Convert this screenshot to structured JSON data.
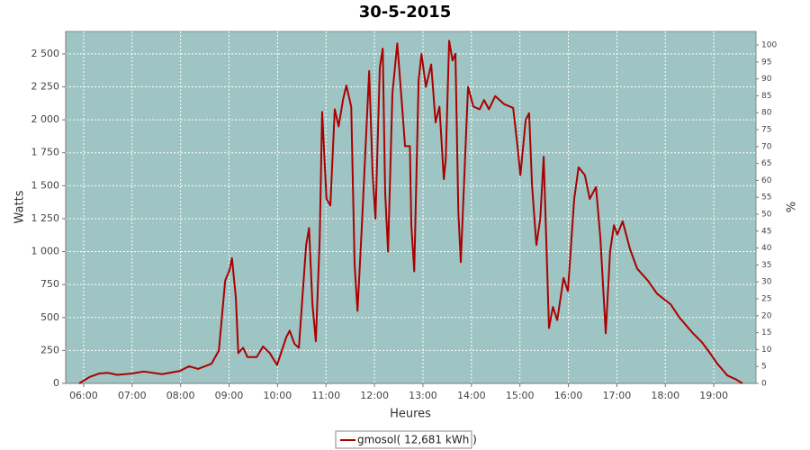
{
  "chart_data": {
    "type": "line",
    "title": "30-5-2015",
    "x_label": "Heures",
    "y_label": "Watts",
    "y2_label": "%",
    "x": [
      5.91,
      6.13,
      6.32,
      6.5,
      6.69,
      7.0,
      7.24,
      7.62,
      7.99,
      8.17,
      8.36,
      8.64,
      8.79,
      8.92,
      9.01,
      9.06,
      9.14,
      9.19,
      9.29,
      9.38,
      9.57,
      9.7,
      9.84,
      9.99,
      10.18,
      10.25,
      10.35,
      10.44,
      10.59,
      10.65,
      10.72,
      10.79,
      10.87,
      10.92,
      11.01,
      11.09,
      11.18,
      11.26,
      11.35,
      11.42,
      11.52,
      11.59,
      11.65,
      11.74,
      11.89,
      11.96,
      12.02,
      12.11,
      12.17,
      12.22,
      12.28,
      12.37,
      12.47,
      12.56,
      12.63,
      12.73,
      12.76,
      12.82,
      12.91,
      12.97,
      13.06,
      13.17,
      13.26,
      13.34,
      13.43,
      13.47,
      13.54,
      13.61,
      13.67,
      13.73,
      13.78,
      13.93,
      14.04,
      14.17,
      14.26,
      14.36,
      14.49,
      14.67,
      14.86,
      14.95,
      15.01,
      15.12,
      15.19,
      15.25,
      15.34,
      15.42,
      15.49,
      15.6,
      15.68,
      15.77,
      15.9,
      15.99,
      16.12,
      16.21,
      16.34,
      16.44,
      16.57,
      16.66,
      16.77,
      16.86,
      16.94,
      17.01,
      17.12,
      17.27,
      17.42,
      17.64,
      17.83,
      18.11,
      18.29,
      18.57,
      18.76,
      18.94,
      19.07,
      19.28,
      19.46,
      19.59
    ],
    "series": [
      {
        "name": "gmosol( 12,681 kWh )",
        "color": "#aa0000",
        "values": [
          0,
          50,
          75,
          80,
          65,
          75,
          90,
          70,
          95,
          130,
          110,
          150,
          250,
          780,
          860,
          950,
          650,
          230,
          270,
          200,
          200,
          280,
          230,
          140,
          350,
          400,
          300,
          270,
          1050,
          1180,
          600,
          320,
          1100,
          2060,
          1400,
          1350,
          2080,
          1950,
          2150,
          2260,
          2100,
          900,
          550,
          1200,
          2370,
          1600,
          1250,
          2400,
          2540,
          1450,
          1000,
          2200,
          2580,
          2150,
          1800,
          1800,
          1200,
          850,
          2300,
          2500,
          2250,
          2420,
          1980,
          2100,
          1550,
          1700,
          2600,
          2450,
          2500,
          1300,
          920,
          2250,
          2100,
          2080,
          2150,
          2080,
          2180,
          2120,
          2090,
          1800,
          1580,
          2000,
          2050,
          1500,
          1050,
          1250,
          1720,
          420,
          580,
          480,
          800,
          700,
          1400,
          1640,
          1580,
          1400,
          1490,
          1100,
          380,
          1000,
          1200,
          1130,
          1230,
          1020,
          870,
          780,
          680,
          600,
          500,
          380,
          310,
          220,
          150,
          60,
          30,
          0
        ]
      }
    ],
    "xlim": [
      5.63,
      19.87
    ],
    "xticks": [
      {
        "value": 6,
        "label": "06:00"
      },
      {
        "value": 7,
        "label": "07:00"
      },
      {
        "value": 8,
        "label": "08:00"
      },
      {
        "value": 9,
        "label": "09:00"
      },
      {
        "value": 10,
        "label": "10:00"
      },
      {
        "value": 11,
        "label": "11:00"
      },
      {
        "value": 12,
        "label": "12:00"
      },
      {
        "value": 13,
        "label": "13:00"
      },
      {
        "value": 14,
        "label": "14:00"
      },
      {
        "value": 15,
        "label": "15:00"
      },
      {
        "value": 16,
        "label": "16:00"
      },
      {
        "value": 17,
        "label": "17:00"
      },
      {
        "value": 18,
        "label": "18:00"
      },
      {
        "value": 19,
        "label": "19:00"
      }
    ],
    "ylim": [
      0,
      2670
    ],
    "yticks": [
      0,
      250,
      500,
      750,
      {
        "value": 1000,
        "label": "1 000"
      },
      {
        "value": 1250,
        "label": "1 250"
      },
      {
        "value": 1500,
        "label": "1 500"
      },
      {
        "value": 1750,
        "label": "1 750"
      },
      {
        "value": 2000,
        "label": "2 000"
      },
      {
        "value": 2250,
        "label": "2 250"
      },
      {
        "value": 2500,
        "label": "2 500"
      }
    ],
    "y2lim": [
      0,
      104
    ],
    "y2ticks": [
      0,
      5,
      10,
      15,
      20,
      25,
      30,
      35,
      40,
      45,
      50,
      55,
      60,
      65,
      70,
      75,
      80,
      85,
      90,
      95,
      100
    ],
    "grid": true,
    "plot_background": "#9fc4c4",
    "legend": "bottom"
  }
}
